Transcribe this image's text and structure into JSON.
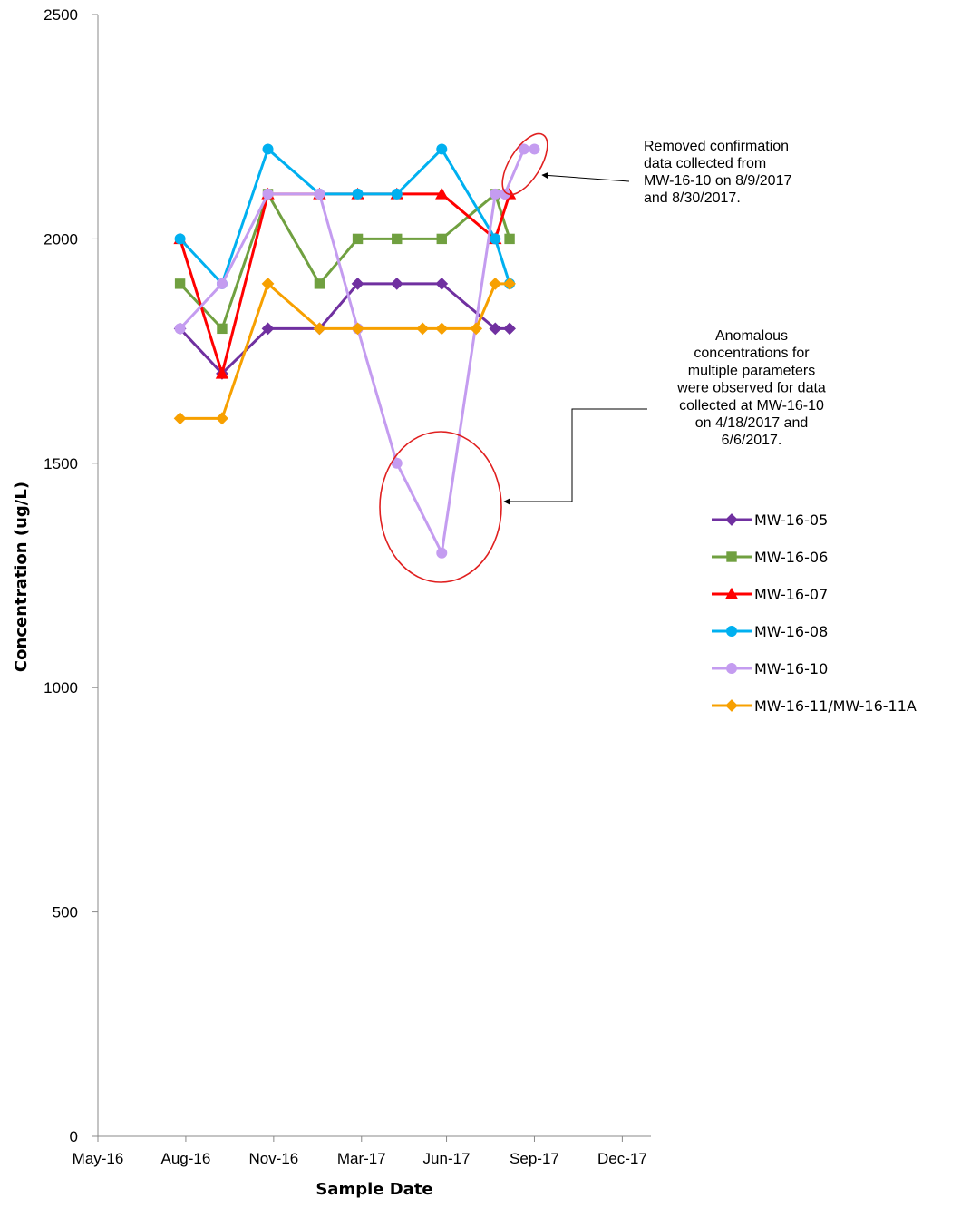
{
  "chart_data": {
    "type": "line",
    "xlabel": "Sample Date",
    "ylabel": "Concentration (ug/L)",
    "ylim": [
      0,
      2500
    ],
    "yticks": [
      "0",
      "500",
      "1000",
      "1500",
      "2000",
      "2500"
    ],
    "xlim": [
      "2016-05-01",
      "2017-12-01"
    ],
    "xticks": [
      {
        "date": "2016-05-01",
        "label": "May-16"
      },
      {
        "date": "2016-08-01",
        "label": "Aug-16"
      },
      {
        "date": "2016-11-01",
        "label": "Nov-16"
      },
      {
        "date": "2017-02-01",
        "label": "Mar-17"
      },
      {
        "date": "2017-05-01",
        "label": "Jun-17"
      },
      {
        "date": "2017-08-01",
        "label": "Sep-17"
      },
      {
        "date": "2017-11-01",
        "label": "Dec-17"
      }
    ],
    "grid": false,
    "legend_position": "right",
    "series": [
      {
        "name": "MW-16-05",
        "color": "#7030A0",
        "marker": "diamond",
        "x": [
          "2016-07-26",
          "2016-09-08",
          "2016-10-26",
          "2016-12-19",
          "2017-01-28",
          "2017-03-10",
          "2017-04-26",
          "2017-06-21",
          "2017-07-06"
        ],
        "y": [
          1800,
          1700,
          1800,
          1800,
          1900,
          1900,
          1900,
          1800,
          1800
        ]
      },
      {
        "name": "MW-16-06",
        "color": "#70A040",
        "marker": "square",
        "x": [
          "2016-07-26",
          "2016-09-08",
          "2016-10-26",
          "2016-12-19",
          "2017-01-28",
          "2017-03-10",
          "2017-04-26",
          "2017-06-21",
          "2017-07-06"
        ],
        "y": [
          1900,
          1800,
          2100,
          1900,
          2000,
          2000,
          2000,
          2100,
          2000
        ]
      },
      {
        "name": "MW-16-07",
        "color": "#FF0000",
        "marker": "triangle",
        "x": [
          "2016-07-26",
          "2016-09-08",
          "2016-10-26",
          "2016-12-19",
          "2017-01-28",
          "2017-03-10",
          "2017-04-26",
          "2017-06-21",
          "2017-07-06"
        ],
        "y": [
          2000,
          1700,
          2100,
          2100,
          2100,
          2100,
          2100,
          2000,
          2100
        ]
      },
      {
        "name": "MW-16-08",
        "color": "#00B0F0",
        "marker": "circle",
        "x": [
          "2016-07-26",
          "2016-09-08",
          "2016-10-26",
          "2016-12-19",
          "2017-01-28",
          "2017-03-10",
          "2017-04-26",
          "2017-06-21",
          "2017-07-06"
        ],
        "y": [
          2000,
          1900,
          2200,
          2100,
          2100,
          2100,
          2200,
          2000,
          1900
        ]
      },
      {
        "name": "MW-16-10",
        "color": "#C49CF0",
        "marker": "circle",
        "x": [
          "2016-07-26",
          "2016-09-08",
          "2016-10-26",
          "2016-12-19",
          "2017-01-28",
          "2017-03-10",
          "2017-04-26",
          "2017-06-21",
          "2017-07-01",
          "2017-07-21",
          "2017-08-01"
        ],
        "y": [
          1800,
          1900,
          2100,
          2100,
          1800,
          1500,
          1300,
          2100,
          2100,
          2200,
          2200
        ]
      },
      {
        "name": "MW-16-11/MW-16-11A",
        "color": "#F7A000",
        "marker": "diamond",
        "x": [
          "2016-07-26",
          "2016-09-08",
          "2016-10-26",
          "2016-12-19",
          "2017-01-28",
          "2017-04-06",
          "2017-04-26",
          "2017-06-01",
          "2017-06-21",
          "2017-07-06"
        ],
        "y": [
          1600,
          1600,
          1900,
          1800,
          1800,
          1800,
          1800,
          1800,
          1900,
          1900
        ]
      }
    ],
    "annotations": [
      {
        "lines": [
          "Removed confirmation",
          "data collected from",
          "MW-16-10 on 8/9/2017",
          "and 8/30/2017."
        ]
      },
      {
        "lines": [
          "Anomalous",
          "concentrations for",
          "multiple parameters",
          "were observed for data",
          "collected at MW-16-10",
          "on 4/18/2017 and",
          "6/6/2017."
        ]
      }
    ]
  }
}
